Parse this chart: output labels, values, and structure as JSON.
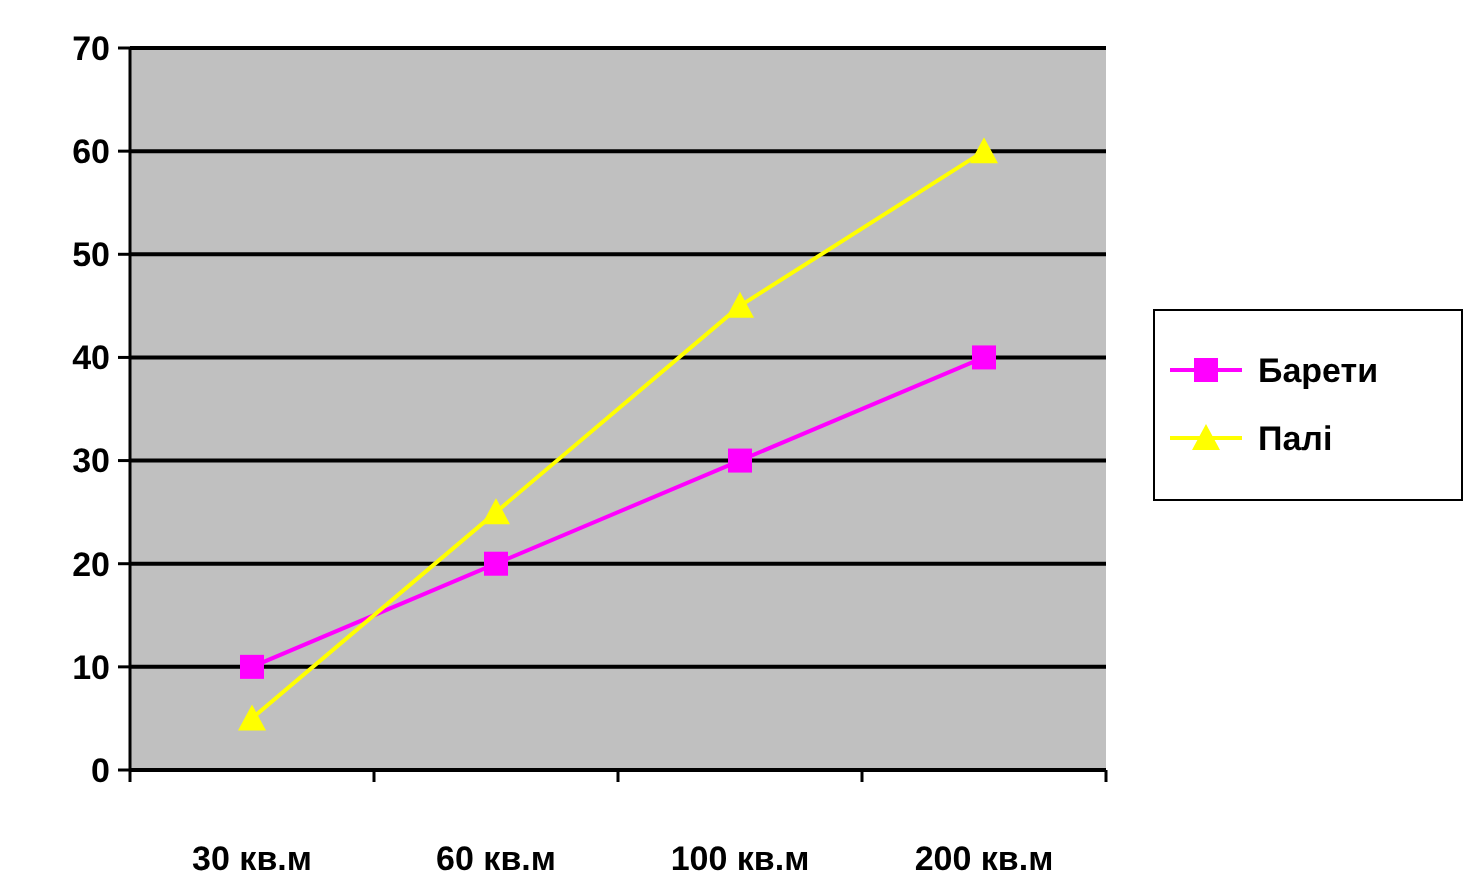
{
  "chart_data": {
    "type": "line",
    "categories": [
      "30 кв.м",
      "60 кв.м",
      "100 кв.м",
      "200 кв.м"
    ],
    "series": [
      {
        "name": "Барети",
        "color": "#ff00ff",
        "values": [
          10,
          20,
          30,
          40
        ],
        "marker": "square"
      },
      {
        "name": "Палі",
        "color": "#ffff00",
        "values": [
          5,
          25,
          45,
          60
        ],
        "marker": "triangle"
      }
    ],
    "ylim": [
      0,
      70
    ],
    "yticks": [
      0,
      10,
      20,
      30,
      40,
      50,
      60,
      70
    ],
    "grid": "y",
    "legend": "right"
  }
}
